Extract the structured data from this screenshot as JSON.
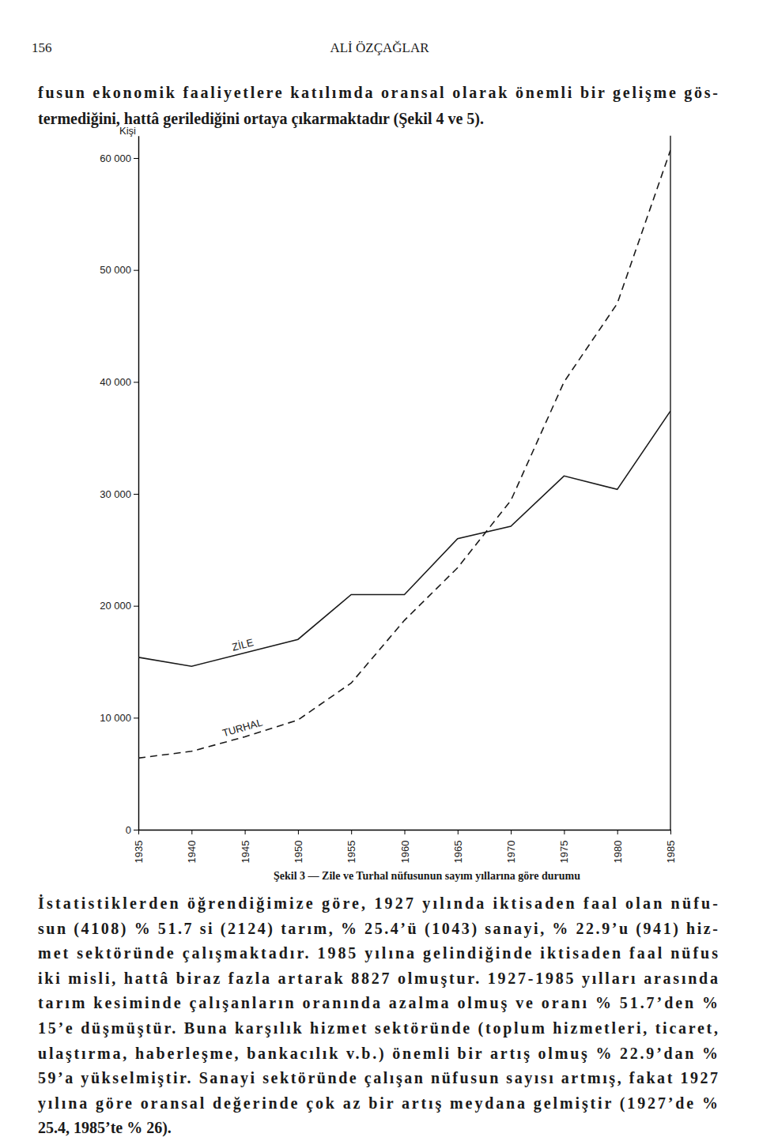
{
  "header": {
    "page_number": "156",
    "author": "ALİ ÖZÇAĞLAR"
  },
  "text_before": [
    "fusun ekonomik faaliyetlere katılımda oransal olarak önemli bir gelişme gös-",
    "termediğini, hattâ gerilediğini ortaya çıkarmaktadır (Şekil 4 ve 5)."
  ],
  "chart_data": {
    "type": "line",
    "y_label": "Kişi",
    "x": [
      1935,
      1940,
      1945,
      1950,
      1955,
      1960,
      1965,
      1970,
      1975,
      1980,
      1985
    ],
    "xlim": [
      1935,
      1985
    ],
    "xticks": [
      1935,
      1940,
      1945,
      1950,
      1955,
      1960,
      1965,
      1970,
      1975,
      1980,
      1985
    ],
    "ylim": [
      0,
      62000
    ],
    "yticks": [
      0,
      {
        "value": 10000,
        "label": "10 000"
      },
      {
        "value": 20000,
        "label": "20 000"
      },
      {
        "value": 30000,
        "label": "30 000"
      },
      {
        "value": 40000,
        "label": "40 000"
      },
      {
        "value": 50000,
        "label": "50 000"
      },
      {
        "value": 60000,
        "label": "60 000"
      }
    ],
    "grid": false,
    "series": [
      {
        "name": "ZİLE",
        "color": "#1a1a1a",
        "line_style": "solid",
        "values": [
          15400,
          14600,
          15800,
          17000,
          21000,
          21000,
          26000,
          27100,
          31600,
          30400,
          37400
        ]
      },
      {
        "name": "TURHAL",
        "color": "#1a1a1a",
        "line_style": "dashed",
        "values": [
          6400,
          7000,
          8300,
          9800,
          13100,
          18700,
          23400,
          29400,
          40000,
          47000,
          60700
        ]
      }
    ]
  },
  "figure_caption": "Şekil 3 — Zile ve Turhal nüfusunun sayım yıllarına göre durumu",
  "text_after": [
    "İstatistiklerden öğrendiğimize göre, 1927 yılında iktisaden faal olan nüfu-",
    "sun (4108) % 51.7 si (2124) tarım, % 25.4’ü (1043) sanayi, % 22.9’u (941) hiz-",
    "met sektöründe çalışmaktadır. 1985 yılına gelindiğinde iktisaden faal nüfus",
    "iki misli, hattâ biraz fazla artarak 8827 olmuştur. 1927-1985 yılları arasında",
    "tarım kesiminde çalışanların oranında azalma olmuş ve oranı % 51.7’den %",
    "15’e düşmüştür. Buna karşılık hizmet sektöründe (toplum hizmetleri, ticaret,",
    "ulaştırma, haberleşme, bankacılık v.b.) önemli bir artış olmuş % 22.9’dan %",
    "59’a yükselmiştir. Sanayi sektöründe çalışan nüfusun sayısı artmış, fakat 1927",
    "yılına göre oransal değerinde çok az bir artış meydana gelmiştir (1927’de %",
    "25.4, 1985’te % 26)."
  ]
}
